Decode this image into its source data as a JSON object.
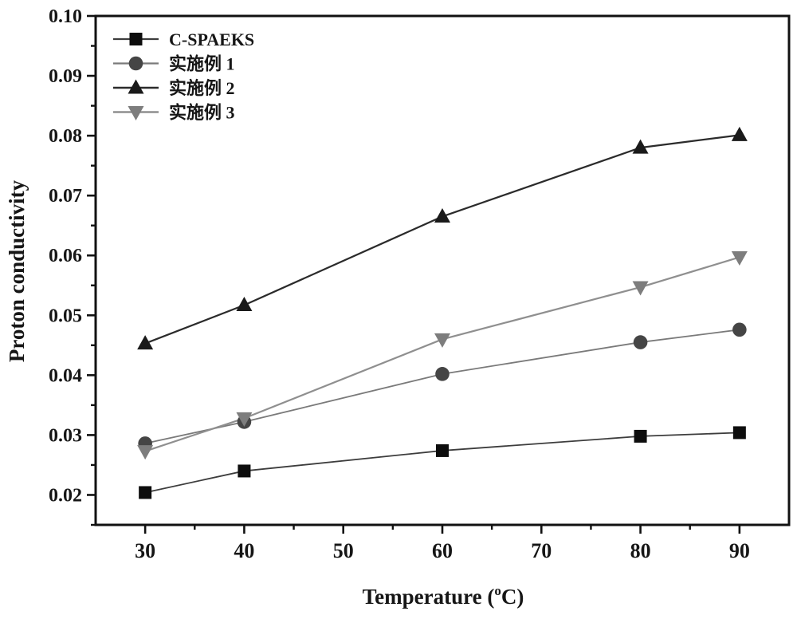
{
  "figure": {
    "ylabel": "Proton conductivity",
    "xlabel_prefix": "Temperature (",
    "xlabel_sup": "o",
    "xlabel_suffix": "C)"
  },
  "chart_data": {
    "type": "line",
    "title": "",
    "xlabel": "Temperature (°C)",
    "ylabel": "Proton conductivity",
    "x": [
      30,
      40,
      60,
      80,
      90
    ],
    "series": [
      {
        "name": "C-SPAEKS",
        "marker": "square",
        "marker_color": "#0d0d0d",
        "line_color": "#3d3d3d",
        "line_width": 1.8,
        "values": [
          0.0204,
          0.024,
          0.0274,
          0.0298,
          0.0304
        ]
      },
      {
        "name": "实施例 1",
        "marker": "circle",
        "marker_color": "#454545",
        "line_color": "#7a7a7a",
        "line_width": 1.8,
        "values": [
          0.0286,
          0.0322,
          0.0402,
          0.0455,
          0.0476
        ]
      },
      {
        "name": "实施例 2",
        "marker": "triangle-up",
        "marker_color": "#1a1a1a",
        "line_color": "#2b2b2b",
        "line_width": 2.2,
        "values": [
          0.0453,
          0.0517,
          0.0665,
          0.078,
          0.0801
        ]
      },
      {
        "name": "实施例 3",
        "marker": "triangle-down",
        "marker_color": "#7d7d7d",
        "line_color": "#8f8f8f",
        "line_width": 2.2,
        "values": [
          0.0273,
          0.0328,
          0.046,
          0.0547,
          0.0597
        ]
      }
    ],
    "xlim": [
      25,
      95
    ],
    "ylim": [
      0.015,
      0.1
    ],
    "x_major_ticks": [
      30,
      40,
      50,
      60,
      70,
      80,
      90
    ],
    "x_tick_labels": [
      "30",
      "40",
      "50",
      "60",
      "70",
      "80",
      "90"
    ],
    "x_minor_ticks": [
      35,
      45,
      55,
      65,
      75,
      85
    ],
    "y_major_ticks": [
      0.02,
      0.03,
      0.04,
      0.05,
      0.06,
      0.07,
      0.08,
      0.09,
      0.1
    ],
    "y_tick_labels": [
      "0.02",
      "0.03",
      "0.04",
      "0.05",
      "0.06",
      "0.07",
      "0.08",
      "0.09",
      "0.10"
    ],
    "y_minor_ticks": [
      0.015,
      0.025,
      0.035,
      0.045,
      0.055,
      0.065,
      0.075,
      0.085,
      0.095
    ],
    "grid": false,
    "legend_position": "upper-left",
    "frame_color": "#111111"
  }
}
